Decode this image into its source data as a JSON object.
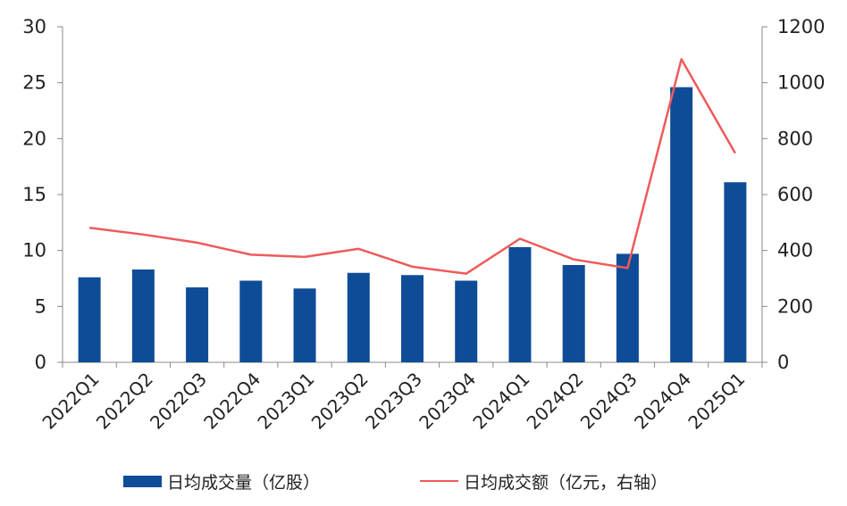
{
  "chart_data": {
    "type": "bar",
    "categories": [
      "2022Q1",
      "2022Q2",
      "2022Q3",
      "2022Q4",
      "2023Q1",
      "2023Q2",
      "2023Q3",
      "2023Q4",
      "2024Q1",
      "2024Q2",
      "2024Q3",
      "2024Q4",
      "2025Q1"
    ],
    "series": [
      {
        "name": "日均成交量（亿股）",
        "type": "bar",
        "axis": "left",
        "color": "#0E4C97",
        "values": [
          7.6,
          8.3,
          6.7,
          7.3,
          6.6,
          8.0,
          7.8,
          7.3,
          10.3,
          8.7,
          9.7,
          24.6,
          16.1
        ]
      },
      {
        "name": "日均成交额（亿元，右轴）",
        "type": "line",
        "axis": "right",
        "color": "#EF5A5A",
        "values": [
          481,
          457,
          428,
          385,
          377,
          406,
          342,
          317,
          442,
          368,
          337,
          1084,
          748
        ]
      }
    ],
    "y_left": {
      "ylim": [
        0,
        30
      ],
      "ticks": [
        0,
        5,
        10,
        15,
        20,
        25,
        30
      ]
    },
    "y_right": {
      "ylim": [
        0,
        1200
      ],
      "ticks": [
        0,
        200,
        400,
        600,
        800,
        1000,
        1200
      ]
    },
    "grid": false,
    "legend_position": "bottom"
  },
  "legend": {
    "bar_label": "日均成交量（亿股）",
    "line_label": "日均成交额（亿元，右轴）"
  }
}
